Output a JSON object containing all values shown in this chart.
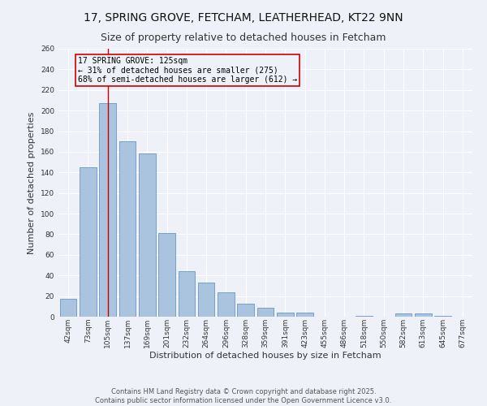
{
  "title": "17, SPRING GROVE, FETCHAM, LEATHERHEAD, KT22 9NN",
  "subtitle": "Size of property relative to detached houses in Fetcham",
  "xlabel": "Distribution of detached houses by size in Fetcham",
  "ylabel": "Number of detached properties",
  "categories": [
    "42sqm",
    "73sqm",
    "105sqm",
    "137sqm",
    "169sqm",
    "201sqm",
    "232sqm",
    "264sqm",
    "296sqm",
    "328sqm",
    "359sqm",
    "391sqm",
    "423sqm",
    "455sqm",
    "486sqm",
    "518sqm",
    "550sqm",
    "582sqm",
    "613sqm",
    "645sqm",
    "677sqm"
  ],
  "values": [
    17,
    145,
    207,
    170,
    158,
    81,
    44,
    33,
    24,
    13,
    9,
    4,
    4,
    0,
    0,
    1,
    0,
    3,
    3,
    1,
    0
  ],
  "bar_color": "#aac4e0",
  "bar_edge_color": "#5588bb",
  "bar_linewidth": 0.5,
  "annotation_text": "17 SPRING GROVE: 125sqm\n← 31% of detached houses are smaller (275)\n68% of semi-detached houses are larger (612) →",
  "annotation_box_edge": "#cc0000",
  "vline_x": 2,
  "vline_color": "#cc0000",
  "ylim": [
    0,
    260
  ],
  "yticks": [
    0,
    20,
    40,
    60,
    80,
    100,
    120,
    140,
    160,
    180,
    200,
    220,
    240,
    260
  ],
  "background_color": "#eef2f8",
  "grid_color": "#ffffff",
  "footer_line1": "Contains HM Land Registry data © Crown copyright and database right 2025.",
  "footer_line2": "Contains public sector information licensed under the Open Government Licence v3.0.",
  "title_fontsize": 10,
  "subtitle_fontsize": 9,
  "axis_label_fontsize": 8,
  "tick_fontsize": 6.5,
  "annotation_fontsize": 7,
  "footer_fontsize": 6
}
